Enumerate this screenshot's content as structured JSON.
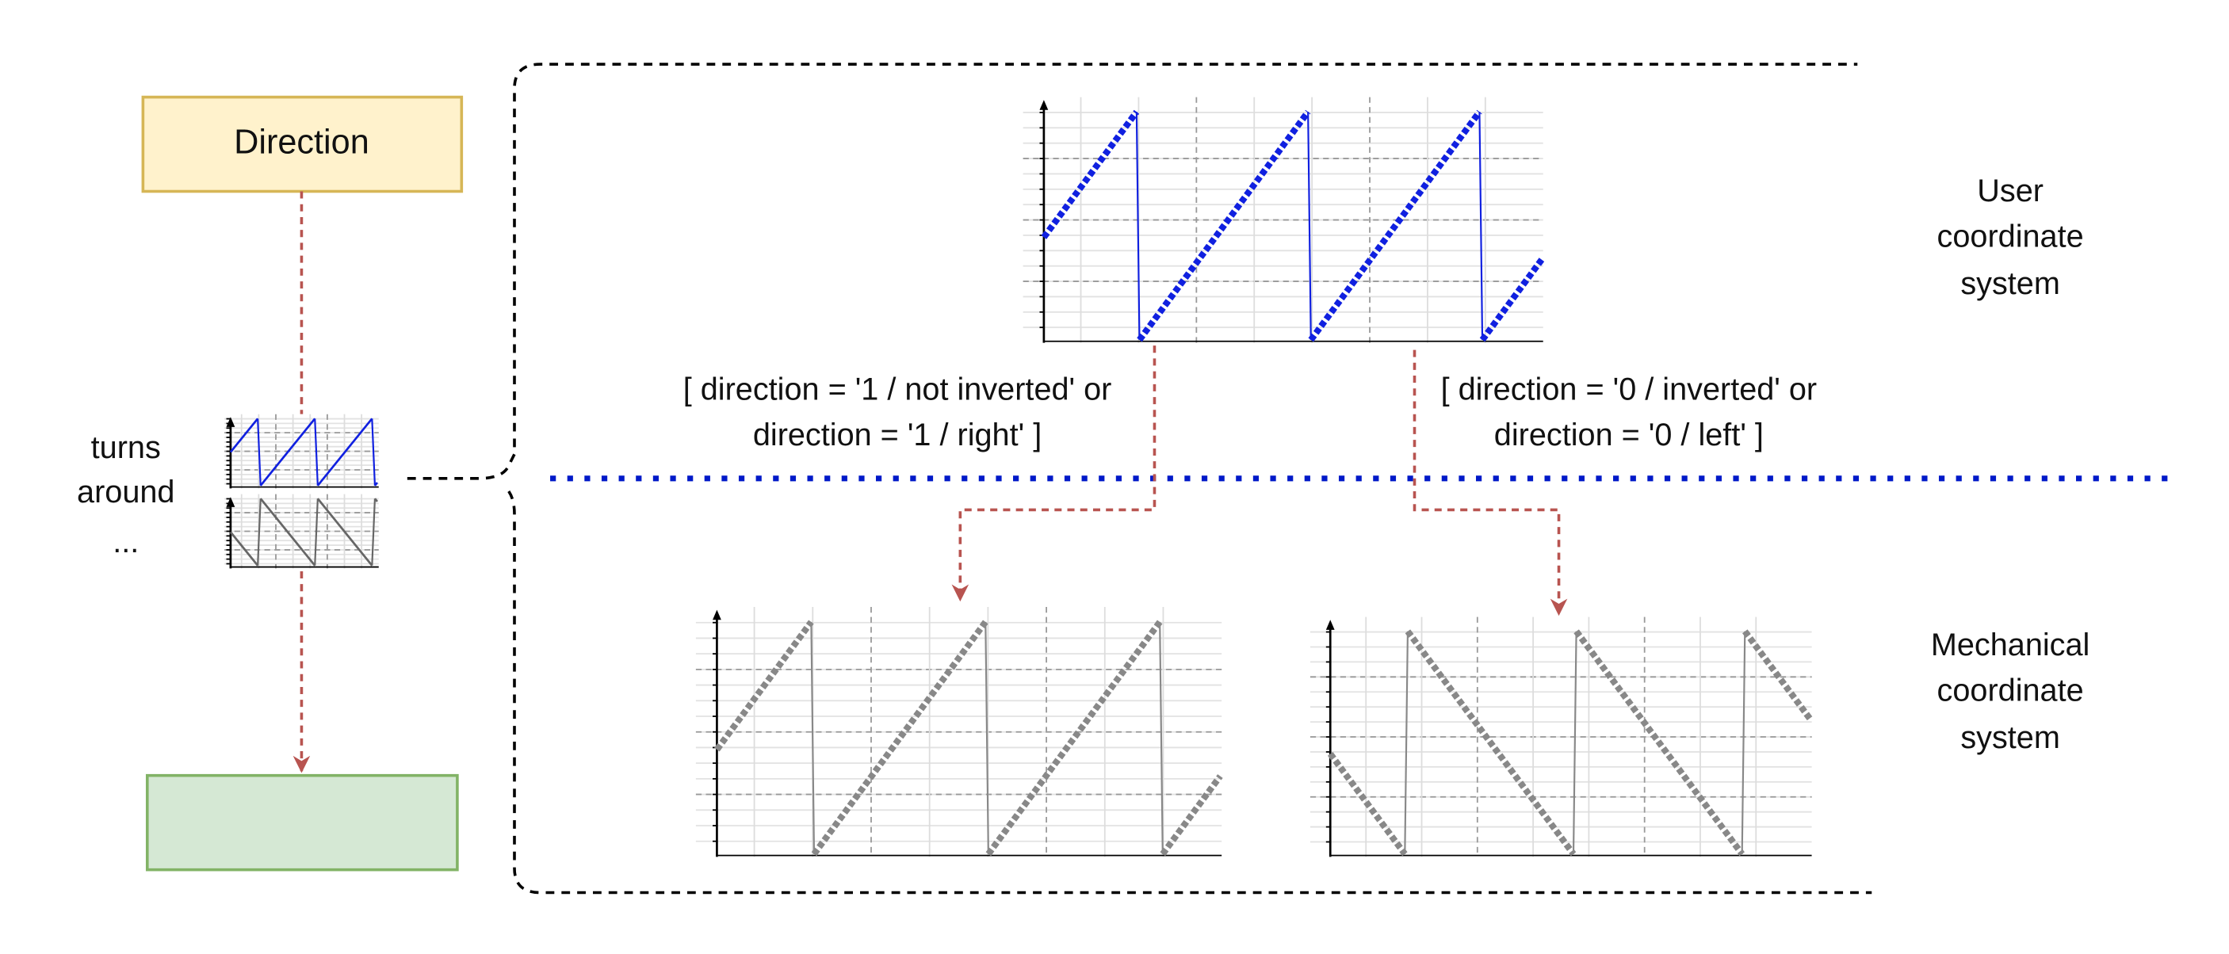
{
  "direction_box": "Direction",
  "turns_label": [
    "turns",
    "around",
    "..."
  ],
  "user_label": [
    "User",
    "coordinate",
    "system"
  ],
  "mechanical_label": [
    "Mechanical",
    "coordinate",
    "system"
  ],
  "condition_not_inverted": [
    "[ direction = '1 / not inverted' or",
    "direction = '1 / right' ]"
  ],
  "condition_inverted": [
    "[ direction = '0 / inverted' or",
    "direction = '0 / left' ]"
  ]
}
